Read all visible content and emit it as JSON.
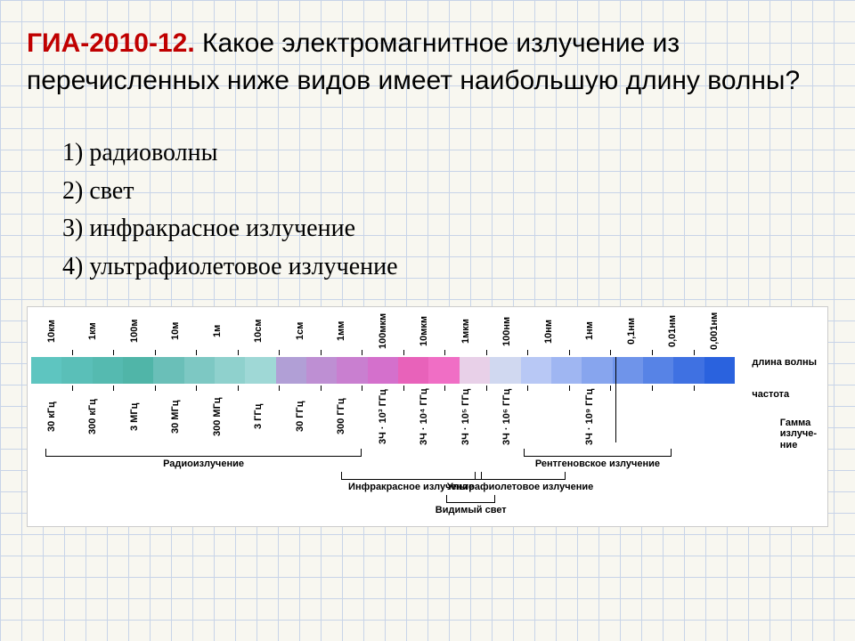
{
  "question": {
    "lead": "ГИА-2010-12.",
    "body": " Какое электромагнитное излучение из перечисленных ниже видов имеет наибольшую длину волны?"
  },
  "options": [
    "1) радиоволны",
    "2) свет",
    "3) инфракрасное излучение",
    "4) ультрафиолетовое излучение"
  ],
  "spectrum": {
    "wavelength_labels": [
      "10км",
      "1км",
      "100м",
      "10м",
      "1м",
      "10см",
      "1см",
      "1мм",
      "100мкм",
      "10мкм",
      "1мкм",
      "100нм",
      "10нм",
      "1нм",
      "0,1нм",
      "0,01нм",
      "0,001нм"
    ],
    "frequency_labels": [
      "30 кГц",
      "300 кГц",
      "3 МГц",
      "30 МГц",
      "300 МГц",
      "3 ГГц",
      "30 ГГц",
      "300 ГГц",
      "3Ч · 10³ ГГц",
      "3Ч · 10⁴ ГГц",
      "3Ч · 10⁵ ГГц",
      "3Ч · 10⁶ ГГц",
      "",
      "3Ч · 10⁹ ГГц",
      "",
      "",
      ""
    ],
    "right_label_1": "длина волны",
    "right_label_2": "частота",
    "bar_colors": [
      "#5ec5c0",
      "#5abfb8",
      "#55bab0",
      "#50b5a8",
      "#6abfb8",
      "#7dc8c3",
      "#8fd1cd",
      "#9fd8d6",
      "#b19fd6",
      "#be8fd3",
      "#c97fd0",
      "#d470cc",
      "#e862ba",
      "#f06ec5",
      "#e8d0e8",
      "#d0d8f0",
      "#b8c8f5",
      "#9fb6f2",
      "#87a5ee",
      "#6f94ea",
      "#5783e6",
      "#3f71e2",
      "#2a62de"
    ],
    "regions": {
      "radio": {
        "label": "Радиоизлучение",
        "start_pct": 2,
        "end_pct": 47,
        "row": 1
      },
      "infrared": {
        "label": "Инфракрасное излучение",
        "start_pct": 44,
        "end_pct": 64,
        "row": 2
      },
      "visible": {
        "label": "Видимый свет",
        "start_pct": 59,
        "end_pct": 66,
        "row": 3
      },
      "uv": {
        "label": "Ультрафиолетовое излучение",
        "start_pct": 63,
        "end_pct": 76,
        "row": 2
      },
      "xray": {
        "label": "Рентгеновское излучение",
        "start_pct": 70,
        "end_pct": 91,
        "row": 1
      },
      "gamma": {
        "label": "Гамма излуче-ние",
        "start_pct": 83
      }
    }
  },
  "colors": {
    "grid_line": "#c8d4e8",
    "grid_bg": "#f8f7f0",
    "lead": "#c00000",
    "text": "#000000"
  }
}
